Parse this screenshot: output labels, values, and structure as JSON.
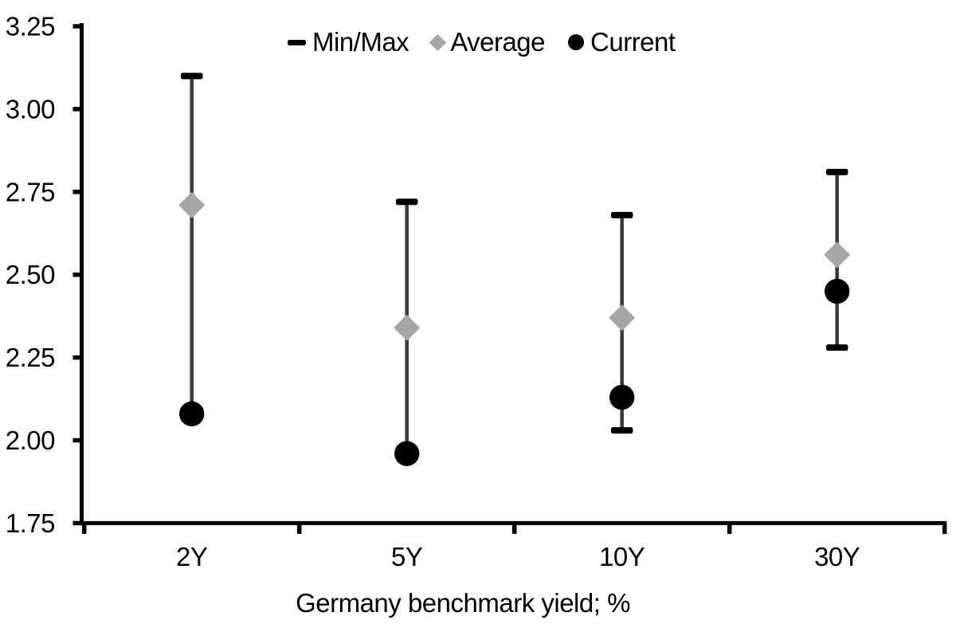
{
  "chart_data": {
    "type": "scatter",
    "title": "",
    "xlabel": "Germany benchmark yield; %",
    "ylabel": "",
    "ylim": [
      1.75,
      3.25
    ],
    "ytick_step": 0.25,
    "ytick_labels": [
      "3.25",
      "3.00",
      "2.75",
      "2.50",
      "2.25",
      "2.00",
      "1.75"
    ],
    "categories": [
      "2Y",
      "5Y",
      "10Y",
      "30Y"
    ],
    "series": [
      {
        "name": "Min/Max",
        "marker": "dash",
        "min": [
          2.08,
          1.96,
          2.03,
          2.28
        ],
        "max": [
          3.1,
          2.72,
          2.68,
          2.81
        ]
      },
      {
        "name": "Average",
        "marker": "diamond",
        "values": [
          2.71,
          2.34,
          2.37,
          2.56
        ]
      },
      {
        "name": "Current",
        "marker": "circle",
        "values": [
          2.08,
          1.96,
          2.13,
          2.45
        ]
      }
    ],
    "legend_position": "top-center",
    "grid": false
  },
  "legend": {
    "items": [
      {
        "label": "Min/Max",
        "marker": "dash"
      },
      {
        "label": "Average",
        "marker": "diamond"
      },
      {
        "label": "Current",
        "marker": "circle"
      }
    ]
  },
  "colors": {
    "background": "#ffffff",
    "text": "#000000",
    "axis": "#000000",
    "range_line": "#3a3a3a",
    "minmax_cap": "#000000",
    "average_gray": "#a6a6a6",
    "current_black": "#000000"
  }
}
